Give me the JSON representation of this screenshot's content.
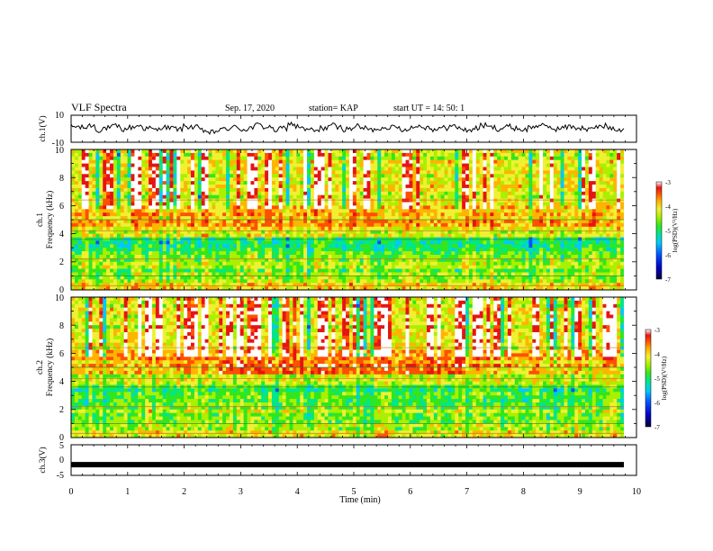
{
  "header": {
    "title": "VLF Spectra",
    "date": "Sep. 17, 2020",
    "station": "station= KAP",
    "start": "start  UT =   14: 50: 1"
  },
  "chart_data": [
    {
      "type": "line",
      "panel": "ch1-waveform",
      "ylabel": "ch.1(V)",
      "ylim": [
        -10,
        10
      ],
      "yticks": [
        "10",
        "-10"
      ],
      "xlim": [
        0,
        10
      ],
      "description_values": "noisy waveform oscillating roughly between -4 and +6 V over 0-9.8 min",
      "y": [
        1.5,
        0.8,
        2.5,
        -1.0,
        0.5,
        1.8,
        -0.5,
        1.0,
        2.2,
        0.3,
        -0.8,
        1.2,
        0.5,
        -0.2,
        1.6,
        0.9,
        -1.5,
        -2.8,
        -1.2,
        0.2,
        1.0,
        -0.5,
        0.8,
        2.8,
        1.2,
        -1.0,
        0.4,
        3.5,
        1.5,
        -0.8,
        -1.6,
        0.5,
        2.5,
        1.0,
        -0.3,
        1.8,
        0.6,
        -0.9,
        0.2,
        1.4,
        0.8,
        -0.6,
        0.9,
        2.0,
        1.1,
        -0.4,
        0.6,
        1.9,
        0.7,
        -1.1,
        0.3,
        2.4,
        1.0,
        0.0,
        1.5,
        0.4,
        -0.7,
        1.1,
        2.6,
        1.3,
        -0.2,
        0.9,
        1.7,
        0.5,
        -0.6,
        1.2,
        2.1,
        0.8,
        -0.3,
        1.0
      ]
    },
    {
      "type": "heatmap",
      "panel": "ch1-spectrogram",
      "ylabel": "ch.1\nFrequency (kHz)",
      "ylim": [
        0,
        10
      ],
      "yticks": [
        "0",
        "2",
        "4",
        "6",
        "8",
        "10"
      ],
      "xlim": [
        0,
        10
      ],
      "colorbar": {
        "label": "log(PSD)(V²/Hz)",
        "range": [
          -7,
          -3
        ],
        "ticks": [
          "-3",
          "-4",
          "-5",
          "-6",
          "-7"
        ]
      }
    },
    {
      "type": "heatmap",
      "panel": "ch2-spectrogram",
      "ylabel": "ch.2\nFrequency (kHz)",
      "ylim": [
        0,
        10
      ],
      "yticks": [
        "0",
        "2",
        "4",
        "6",
        "8",
        "10"
      ],
      "xlim": [
        0,
        10
      ],
      "colorbar": {
        "label": "log(PSD)(V²/Hz)",
        "range": [
          -7,
          -3
        ],
        "ticks": [
          "-3",
          "-4",
          "-5",
          "-6",
          "-7"
        ]
      }
    },
    {
      "type": "line",
      "panel": "ch3-waveform",
      "ylabel": "ch.3(V)",
      "ylim": [
        -5,
        5
      ],
      "yticks": [
        "5",
        "0",
        "-5"
      ],
      "xlim": [
        0,
        10
      ],
      "xlabel": "Time  (min)",
      "xticks": [
        "0",
        "1",
        "2",
        "3",
        "4",
        "5",
        "6",
        "7",
        "8",
        "9",
        "10"
      ],
      "level": -1.5
    }
  ],
  "colors": {
    "scale": [
      "#00003c",
      "#0000c8",
      "#0050ff",
      "#00c8ff",
      "#00e68c",
      "#32e61e",
      "#aaf000",
      "#f0f032",
      "#ffb400",
      "#ff5000",
      "#e61414",
      "#ffffff"
    ]
  }
}
